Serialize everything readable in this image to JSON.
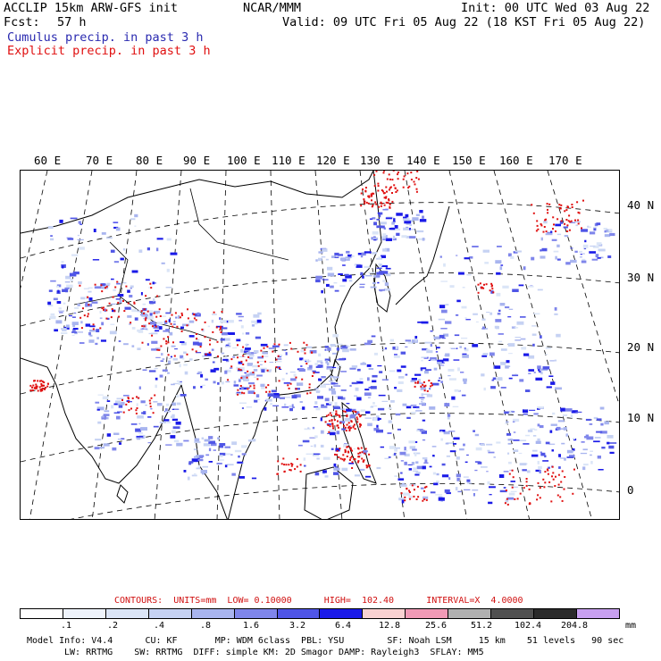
{
  "header": {
    "line1_left": "ACCLIP 15km ARW-GFS init",
    "line1_center": "NCAR/MMM",
    "line1_right": "Init: 00 UTC Wed 03 Aug 22",
    "line2_left_label": "Fcst:",
    "line2_left_value": "57 h",
    "line2_right": "Valid: 09 UTC Fri 05 Aug 22 (18 KST Fri 05 Aug 22)",
    "cumulus": "Cumulus precip. in past 3 h",
    "explicit": "Explicit precip. in past 3 h"
  },
  "colors": {
    "cumulus": "#2a2ab0",
    "explicit": "#e01010",
    "grid": "#000000"
  },
  "map": {
    "lon_labels": [
      "60 E",
      "70 E",
      "80 E",
      "90 E",
      "100 E",
      "110 E",
      "120 E",
      "130 E",
      "140 E",
      "150 E",
      "160 E",
      "170 E"
    ],
    "lat_labels": [
      "40 N",
      "30 N",
      "20 N",
      "10 N",
      "0"
    ]
  },
  "contours": {
    "text": "CONTOURS:  UNITS=mm  LOW= 0.10000      HIGH=  102.40      INTERVAL=X  4.0000"
  },
  "legend": {
    "colors": [
      "#ffffff",
      "#eef3fb",
      "#dbe5f7",
      "#c6d2f3",
      "#a9b5ef",
      "#7f86eb",
      "#4f55e6",
      "#1a1ae8",
      "#f9d2d2",
      "#f09ab6",
      "#b0b0b0",
      "#505050",
      "#2a2a2a",
      "#c8a0f0"
    ],
    "ticks": [
      ".1",
      ".2",
      ".4",
      ".8",
      "1.6",
      "3.2",
      "6.4",
      "12.8",
      "25.6",
      "51.2",
      "102.4",
      "204.8"
    ],
    "unit": "mm"
  },
  "footer": {
    "line1": "Model Info: V4.4      CU: KF       MP: WDM 6class  PBL: YSU        SF: Noah LSM     15 km    51 levels   90 sec",
    "line2": "LW: RRTMG    SW: RRTMG  DIFF: simple KM: 2D Smagor DAMP: Rayleigh3  SFLAY: MM5"
  }
}
